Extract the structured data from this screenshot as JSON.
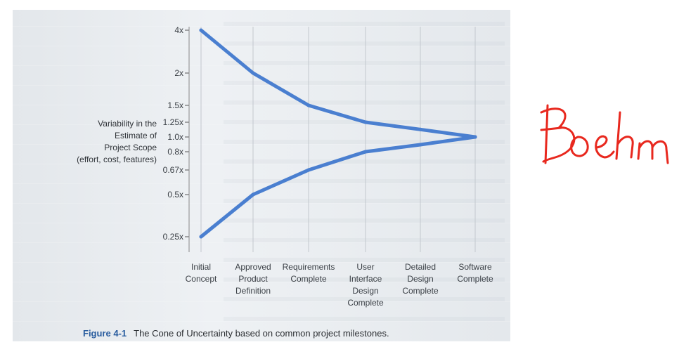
{
  "figure": {
    "label": "Figure 4-1",
    "caption": "The Cone of Uncertainty based on common project milestones."
  },
  "annotation": {
    "handwritten": "Boehm",
    "color": "#e8281e"
  },
  "chart_data": {
    "type": "line",
    "title": "",
    "ylabel_lines": [
      "Variability in the",
      "Estimate of",
      "Project Scope",
      "(effort, cost, features)"
    ],
    "xlabel": "",
    "y_ticks": [
      {
        "value": 4,
        "label": "4x"
      },
      {
        "value": 2,
        "label": "2x"
      },
      {
        "value": 1.5,
        "label": "1.5x"
      },
      {
        "value": 1.25,
        "label": "1.25x"
      },
      {
        "value": 1.0,
        "label": "1.0x"
      },
      {
        "value": 0.8,
        "label": "0.8x"
      },
      {
        "value": 0.67,
        "label": "0.67x"
      },
      {
        "value": 0.5,
        "label": "0.5x"
      },
      {
        "value": 0.25,
        "label": "0.25x"
      }
    ],
    "ylim": [
      0.25,
      4
    ],
    "categories": [
      [
        "Initial",
        "Concept"
      ],
      [
        "Approved",
        "Product",
        "Definition"
      ],
      [
        "Requirements",
        "Complete"
      ],
      [
        "User",
        "Interface",
        "Design",
        "Complete"
      ],
      [
        "Detailed",
        "Design",
        "Complete"
      ],
      [
        "Software",
        "Complete"
      ]
    ],
    "series": [
      {
        "values": [
          4,
          2,
          1.5,
          1.25,
          1.12,
          1.0
        ]
      },
      {
        "values": [
          0.25,
          0.5,
          0.67,
          0.8,
          0.89,
          1.0
        ]
      }
    ],
    "line_color": "#4a7fd0",
    "grid": true
  }
}
